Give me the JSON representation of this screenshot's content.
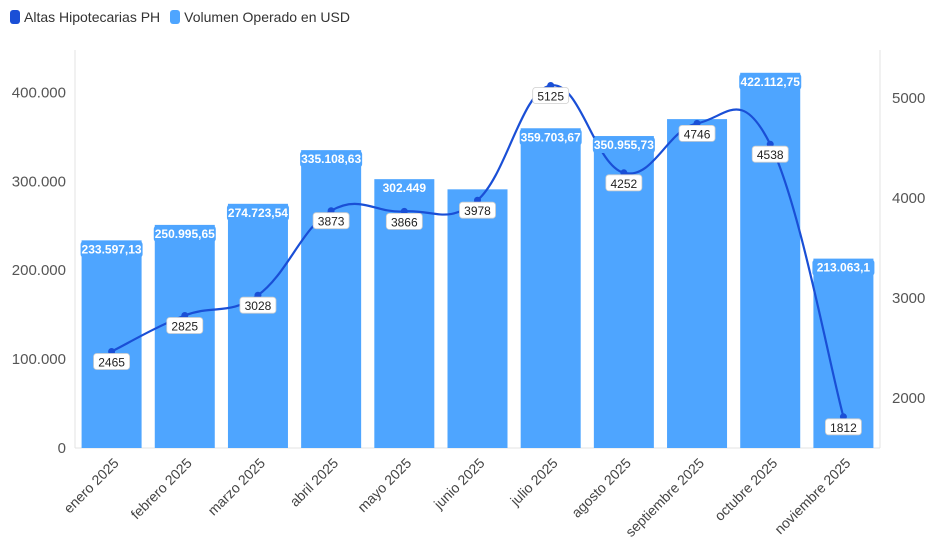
{
  "chart_data": {
    "type": "bar",
    "categories": [
      "enero 2025",
      "febrero 2025",
      "marzo 2025",
      "abril 2025",
      "mayo 2025",
      "junio 2025",
      "julio 2025",
      "agosto 2025",
      "septiembre 2025",
      "octubre 2025",
      "noviembre 2025"
    ],
    "series": [
      {
        "name": "Volumen Operado en USD",
        "type": "bar",
        "axis": "left",
        "color": "#4ea5ff",
        "values": [
          233597.13,
          250995.65,
          274723.54,
          335108.63,
          302449,
          291000,
          359703.67,
          350955.73,
          370000,
          422112.75,
          213063.1
        ],
        "labels": [
          "233.597,13",
          "250.995,65",
          "274.723,54",
          "335.108,63",
          "302.449",
          "",
          "359.703,67",
          "350.955,73",
          "",
          "422.112,75",
          "213.063,1"
        ]
      },
      {
        "name": "Altas Hipotecarias PH",
        "type": "line",
        "axis": "right",
        "color": "#1a4fd6",
        "values": [
          2465,
          2825,
          3028,
          3873,
          3866,
          3978,
          5125,
          4252,
          4746,
          4538,
          1812
        ],
        "labels": [
          "2465",
          "2825",
          "3028",
          "3873",
          "3866",
          "3978",
          "5125",
          "4252",
          "4746",
          "4538",
          "1812"
        ]
      }
    ],
    "y_left": {
      "range": [
        0,
        450000
      ],
      "ticks": [
        0,
        100000,
        200000,
        300000,
        400000
      ],
      "tick_labels": [
        "0",
        "100.000",
        "200.000",
        "300.000",
        "400.000"
      ]
    },
    "y_right": {
      "range": [
        1500,
        5500
      ],
      "ticks": [
        2000,
        3000,
        4000,
        5000
      ],
      "tick_labels": [
        "2000",
        "3000",
        "4000",
        "5000"
      ]
    },
    "legend_position": "top-left",
    "grid": false
  }
}
